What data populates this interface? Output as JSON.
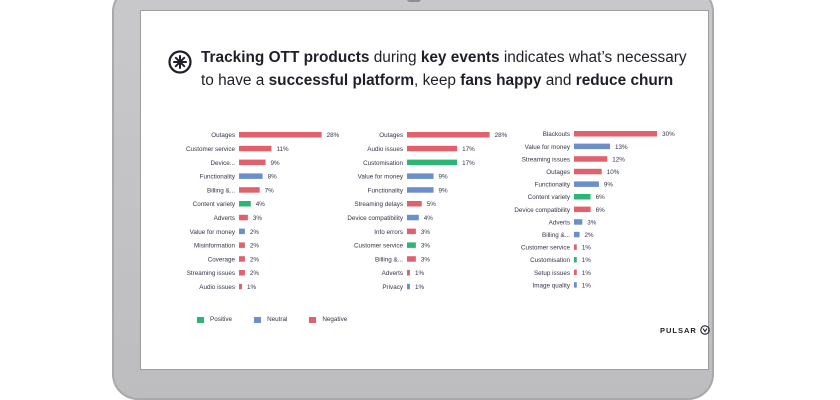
{
  "headline": {
    "part1": "Tracking OTT products",
    "part2": " during ",
    "part3": "key events",
    "part4": " indicates what’s necessary to have a ",
    "part5": "successful platform",
    "part6": ", keep ",
    "part7": "fans happy",
    "part8": " and ",
    "part9": "reduce churn"
  },
  "brand": {
    "name": "PULSAR",
    "icon": "pulsar-logo-icon"
  },
  "headline_icon": "starburst-logo-icon",
  "colors": {
    "Positive": "#2bb673",
    "Neutral": "#6b8fcb",
    "Negative": "#e0606d"
  },
  "legend": [
    {
      "label": "Positive",
      "sentiment": "Positive"
    },
    {
      "label": "Neutral",
      "sentiment": "Neutral"
    },
    {
      "label": "Negative",
      "sentiment": "Negative"
    }
  ],
  "chart_data": [
    {
      "type": "bar",
      "orientation": "horizontal",
      "categories": [
        "Outages",
        "Customer service",
        "Device...",
        "Functionality",
        "Billing &...",
        "Content variety",
        "Adverts",
        "Value for money",
        "Misinformation",
        "Coverage",
        "Streaming issues",
        "Audio issues"
      ],
      "values": [
        28,
        11,
        9,
        8,
        7,
        4,
        3,
        2,
        2,
        2,
        2,
        1
      ],
      "value_labels": [
        "28%",
        "11%",
        "9%",
        "8%",
        "7%",
        "4%",
        "3%",
        "2%",
        "2%",
        "2%",
        "2%",
        "1%"
      ],
      "sentiment": [
        "Negative",
        "Negative",
        "Negative",
        "Neutral",
        "Negative",
        "Positive",
        "Negative",
        "Neutral",
        "Negative",
        "Negative",
        "Negative",
        "Negative"
      ],
      "xlim": [
        0,
        30
      ]
    },
    {
      "type": "bar",
      "orientation": "horizontal",
      "categories": [
        "Outages",
        "Audio issues",
        "Customisation",
        "Value for money",
        "Functionality",
        "Streaming delays",
        "Device compatibility",
        "Info errors",
        "Customer service",
        "Billing &...",
        "Adverts",
        "Privacy"
      ],
      "values": [
        28,
        17,
        17,
        9,
        9,
        5,
        4,
        3,
        3,
        3,
        1,
        1
      ],
      "value_labels": [
        "28%",
        "17%",
        "17%",
        "9%",
        "9%",
        "5%",
        "4%",
        "3%",
        "3%",
        "3%",
        "1%",
        "1%"
      ],
      "sentiment": [
        "Negative",
        "Negative",
        "Positive",
        "Neutral",
        "Neutral",
        "Negative",
        "Neutral",
        "Negative",
        "Positive",
        "Negative",
        "Negative",
        "Neutral"
      ],
      "xlim": [
        0,
        30
      ]
    },
    {
      "type": "bar",
      "orientation": "horizontal",
      "categories": [
        "Blackouts",
        "Value for money",
        "Streaming issues",
        "Outages",
        "Functionality",
        "Content variety",
        "Device compatibility",
        "Adverts",
        "Billing &...",
        "Customer service",
        "Customisation",
        "Setup issues",
        "Image quality"
      ],
      "values": [
        30,
        13,
        12,
        10,
        9,
        6,
        6,
        3,
        2,
        1,
        1,
        1,
        1
      ],
      "value_labels": [
        "30%",
        "13%",
        "12%",
        "10%",
        "9%",
        "6%",
        "6%",
        "3%",
        "2%",
        "1%",
        "1%",
        "1%",
        "1%"
      ],
      "sentiment": [
        "Negative",
        "Neutral",
        "Negative",
        "Negative",
        "Neutral",
        "Positive",
        "Negative",
        "Neutral",
        "Neutral",
        "Negative",
        "Positive",
        "Negative",
        "Neutral"
      ],
      "xlim": [
        0,
        30
      ]
    }
  ]
}
